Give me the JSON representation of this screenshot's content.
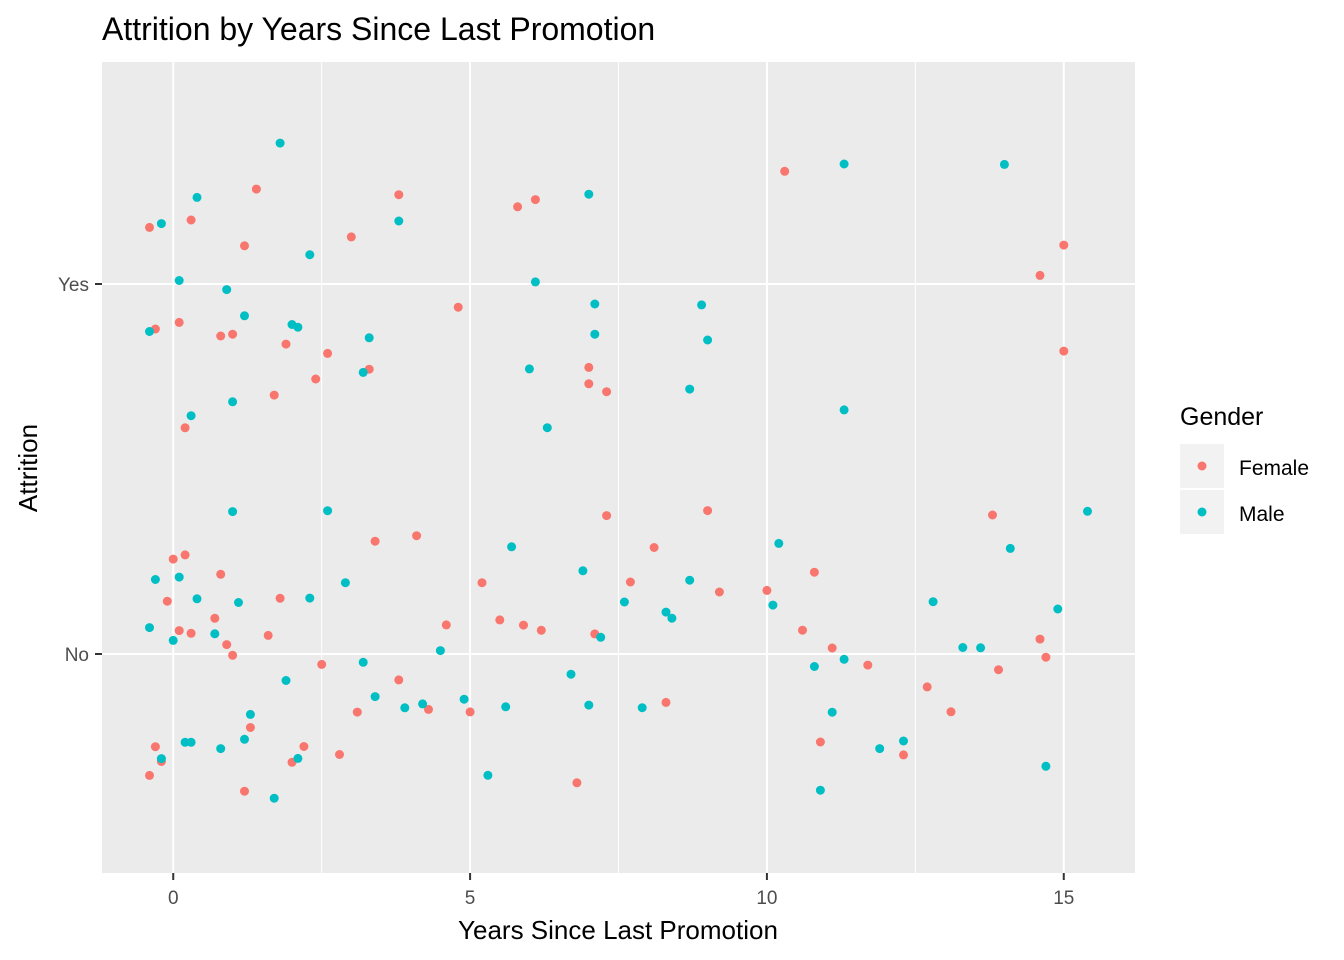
{
  "chart_data": {
    "type": "scatter",
    "title": "Attrition by Years Since Last Promotion",
    "xlabel": "Years Since Last Promotion",
    "ylabel": "Attrition",
    "xlim": [
      -1.2,
      16.2
    ],
    "x_ticks": [
      0,
      5,
      10,
      15
    ],
    "y_categories": [
      "No",
      "Yes"
    ],
    "jitter_note": "points jittered around integer x values and category lines",
    "legend": {
      "title": "Gender",
      "position": "right"
    },
    "grid": true,
    "colors": {
      "Female": "#F8766D",
      "Male": "#00BFC4",
      "panel": "#EBEBEB",
      "grid": "#FFFFFF"
    },
    "series": [
      {
        "name": "Female",
        "points": [
          {
            "x": -0.3,
            "y": "Yes"
          },
          {
            "x": -0.4,
            "y": "Yes"
          },
          {
            "x": 0.1,
            "y": "Yes"
          },
          {
            "x": 0.2,
            "y": "Yes"
          },
          {
            "x": 0.8,
            "y": "Yes"
          },
          {
            "x": 1.0,
            "y": "Yes"
          },
          {
            "x": 1.4,
            "y": "Yes"
          },
          {
            "x": 1.7,
            "y": "Yes"
          },
          {
            "x": 1.9,
            "y": "Yes"
          },
          {
            "x": 2.4,
            "y": "Yes"
          },
          {
            "x": 2.6,
            "y": "Yes"
          },
          {
            "x": 3.0,
            "y": "Yes"
          },
          {
            "x": 3.3,
            "y": "Yes"
          },
          {
            "x": 3.8,
            "y": "Yes"
          },
          {
            "x": 4.8,
            "y": "Yes"
          },
          {
            "x": 5.8,
            "y": "Yes"
          },
          {
            "x": 6.1,
            "y": "Yes"
          },
          {
            "x": 7.0,
            "y": "Yes"
          },
          {
            "x": 7.3,
            "y": "Yes"
          },
          {
            "x": 7.0,
            "y": "Yes"
          },
          {
            "x": 10.3,
            "y": "Yes"
          },
          {
            "x": 14.6,
            "y": "Yes"
          },
          {
            "x": 15.0,
            "y": "Yes"
          },
          {
            "x": 15.0,
            "y": "Yes"
          },
          {
            "x": 0.3,
            "y": "Yes"
          },
          {
            "x": 1.2,
            "y": "Yes"
          },
          {
            "x": -0.4,
            "y": "No"
          },
          {
            "x": -0.2,
            "y": "No"
          },
          {
            "x": 0.1,
            "y": "No"
          },
          {
            "x": 0.3,
            "y": "No"
          },
          {
            "x": -0.3,
            "y": "No"
          },
          {
            "x": 0.0,
            "y": "No"
          },
          {
            "x": 0.2,
            "y": "No"
          },
          {
            "x": -0.1,
            "y": "No"
          },
          {
            "x": 0.7,
            "y": "No"
          },
          {
            "x": 1.0,
            "y": "No"
          },
          {
            "x": 1.2,
            "y": "No"
          },
          {
            "x": 0.9,
            "y": "No"
          },
          {
            "x": 1.3,
            "y": "No"
          },
          {
            "x": 0.8,
            "y": "No"
          },
          {
            "x": 1.6,
            "y": "No"
          },
          {
            "x": 2.0,
            "y": "No"
          },
          {
            "x": 2.2,
            "y": "No"
          },
          {
            "x": 1.8,
            "y": "No"
          },
          {
            "x": 2.5,
            "y": "No"
          },
          {
            "x": 2.8,
            "y": "No"
          },
          {
            "x": 3.1,
            "y": "No"
          },
          {
            "x": 3.4,
            "y": "No"
          },
          {
            "x": 3.8,
            "y": "No"
          },
          {
            "x": 4.1,
            "y": "No"
          },
          {
            "x": 4.3,
            "y": "No"
          },
          {
            "x": 4.6,
            "y": "No"
          },
          {
            "x": 5.0,
            "y": "No"
          },
          {
            "x": 5.2,
            "y": "No"
          },
          {
            "x": 5.5,
            "y": "No"
          },
          {
            "x": 5.9,
            "y": "No"
          },
          {
            "x": 6.2,
            "y": "No"
          },
          {
            "x": 6.8,
            "y": "No"
          },
          {
            "x": 7.1,
            "y": "No"
          },
          {
            "x": 7.3,
            "y": "No"
          },
          {
            "x": 7.7,
            "y": "No"
          },
          {
            "x": 8.1,
            "y": "No"
          },
          {
            "x": 8.3,
            "y": "No"
          },
          {
            "x": 9.0,
            "y": "No"
          },
          {
            "x": 9.2,
            "y": "No"
          },
          {
            "x": 10.0,
            "y": "No"
          },
          {
            "x": 10.6,
            "y": "No"
          },
          {
            "x": 10.8,
            "y": "No"
          },
          {
            "x": 10.9,
            "y": "No"
          },
          {
            "x": 11.1,
            "y": "No"
          },
          {
            "x": 11.7,
            "y": "No"
          },
          {
            "x": 12.3,
            "y": "No"
          },
          {
            "x": 12.7,
            "y": "No"
          },
          {
            "x": 13.1,
            "y": "No"
          },
          {
            "x": 13.8,
            "y": "No"
          },
          {
            "x": 13.9,
            "y": "No"
          },
          {
            "x": 14.6,
            "y": "No"
          },
          {
            "x": 14.7,
            "y": "No"
          }
        ]
      },
      {
        "name": "Male",
        "points": [
          {
            "x": -0.4,
            "y": "Yes"
          },
          {
            "x": -0.2,
            "y": "Yes"
          },
          {
            "x": 0.1,
            "y": "Yes"
          },
          {
            "x": 0.3,
            "y": "Yes"
          },
          {
            "x": 0.4,
            "y": "Yes"
          },
          {
            "x": 0.9,
            "y": "Yes"
          },
          {
            "x": 1.0,
            "y": "Yes"
          },
          {
            "x": 1.2,
            "y": "Yes"
          },
          {
            "x": 1.8,
            "y": "Yes"
          },
          {
            "x": 2.0,
            "y": "Yes"
          },
          {
            "x": 2.1,
            "y": "Yes"
          },
          {
            "x": 2.3,
            "y": "Yes"
          },
          {
            "x": 3.2,
            "y": "Yes"
          },
          {
            "x": 3.3,
            "y": "Yes"
          },
          {
            "x": 3.8,
            "y": "Yes"
          },
          {
            "x": 6.0,
            "y": "Yes"
          },
          {
            "x": 6.3,
            "y": "Yes"
          },
          {
            "x": 6.1,
            "y": "Yes"
          },
          {
            "x": 7.0,
            "y": "Yes"
          },
          {
            "x": 7.1,
            "y": "Yes"
          },
          {
            "x": 7.1,
            "y": "Yes"
          },
          {
            "x": 8.7,
            "y": "Yes"
          },
          {
            "x": 8.9,
            "y": "Yes"
          },
          {
            "x": 9.0,
            "y": "Yes"
          },
          {
            "x": 11.3,
            "y": "Yes"
          },
          {
            "x": 11.3,
            "y": "Yes"
          },
          {
            "x": 14.0,
            "y": "Yes"
          },
          {
            "x": -0.3,
            "y": "No"
          },
          {
            "x": 0.0,
            "y": "No"
          },
          {
            "x": 0.2,
            "y": "No"
          },
          {
            "x": 0.4,
            "y": "No"
          },
          {
            "x": -0.2,
            "y": "No"
          },
          {
            "x": 0.1,
            "y": "No"
          },
          {
            "x": 0.3,
            "y": "No"
          },
          {
            "x": -0.4,
            "y": "No"
          },
          {
            "x": 0.7,
            "y": "No"
          },
          {
            "x": 1.0,
            "y": "No"
          },
          {
            "x": 1.1,
            "y": "No"
          },
          {
            "x": 1.3,
            "y": "No"
          },
          {
            "x": 0.8,
            "y": "No"
          },
          {
            "x": 1.2,
            "y": "No"
          },
          {
            "x": 1.7,
            "y": "No"
          },
          {
            "x": 1.9,
            "y": "No"
          },
          {
            "x": 2.1,
            "y": "No"
          },
          {
            "x": 2.3,
            "y": "No"
          },
          {
            "x": 2.6,
            "y": "No"
          },
          {
            "x": 2.9,
            "y": "No"
          },
          {
            "x": 3.2,
            "y": "No"
          },
          {
            "x": 3.4,
            "y": "No"
          },
          {
            "x": 3.9,
            "y": "No"
          },
          {
            "x": 4.2,
            "y": "No"
          },
          {
            "x": 4.5,
            "y": "No"
          },
          {
            "x": 4.9,
            "y": "No"
          },
          {
            "x": 5.3,
            "y": "No"
          },
          {
            "x": 5.6,
            "y": "No"
          },
          {
            "x": 5.7,
            "y": "No"
          },
          {
            "x": 6.7,
            "y": "No"
          },
          {
            "x": 6.9,
            "y": "No"
          },
          {
            "x": 7.0,
            "y": "No"
          },
          {
            "x": 7.2,
            "y": "No"
          },
          {
            "x": 7.6,
            "y": "No"
          },
          {
            "x": 7.9,
            "y": "No"
          },
          {
            "x": 8.3,
            "y": "No"
          },
          {
            "x": 8.4,
            "y": "No"
          },
          {
            "x": 8.7,
            "y": "No"
          },
          {
            "x": 10.1,
            "y": "No"
          },
          {
            "x": 10.2,
            "y": "No"
          },
          {
            "x": 10.8,
            "y": "No"
          },
          {
            "x": 10.9,
            "y": "No"
          },
          {
            "x": 11.1,
            "y": "No"
          },
          {
            "x": 11.3,
            "y": "No"
          },
          {
            "x": 11.9,
            "y": "No"
          },
          {
            "x": 12.3,
            "y": "No"
          },
          {
            "x": 12.8,
            "y": "No"
          },
          {
            "x": 13.3,
            "y": "No"
          },
          {
            "x": 13.6,
            "y": "No"
          },
          {
            "x": 14.1,
            "y": "No"
          },
          {
            "x": 14.7,
            "y": "No"
          },
          {
            "x": 14.9,
            "y": "No"
          },
          {
            "x": 15.4,
            "y": "No"
          }
        ]
      }
    ]
  }
}
